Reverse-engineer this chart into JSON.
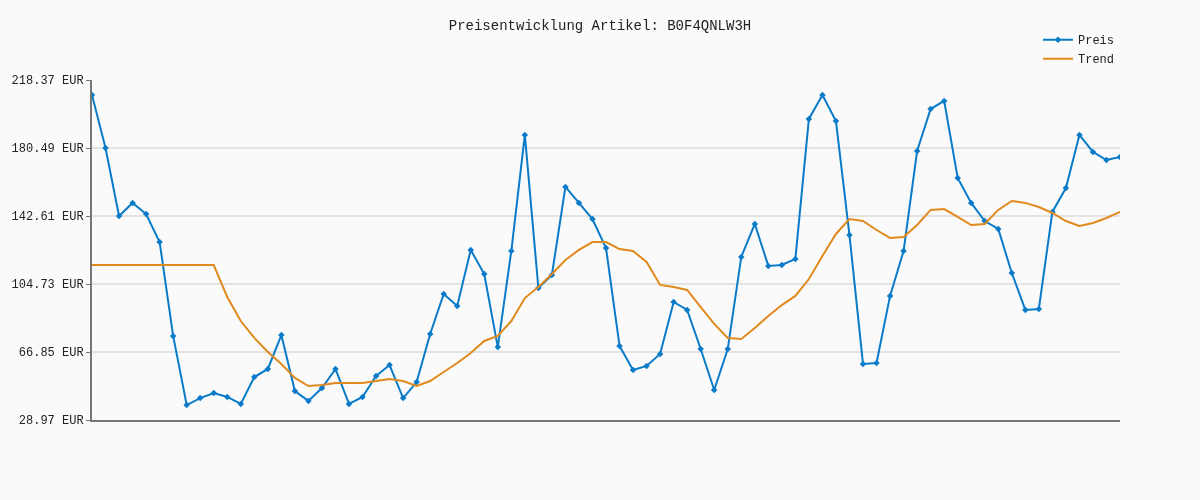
{
  "chart_data": {
    "type": "line",
    "title": "Preisentwicklung Artikel: B0F4QNLW3H",
    "categories": [
      null,
      null,
      null,
      null,
      null,
      null,
      null,
      null,
      null,
      null,
      null,
      null,
      null,
      null,
      null,
      null,
      null,
      null,
      null,
      null,
      null,
      null,
      null,
      null,
      null,
      null,
      null,
      null,
      null,
      null,
      null,
      null,
      null,
      null,
      null,
      null,
      null,
      null,
      null,
      null,
      null,
      null,
      null,
      null,
      null,
      null,
      null,
      null,
      null,
      null,
      null,
      null,
      null,
      null,
      null,
      null,
      null,
      null,
      null,
      null,
      null,
      null,
      null,
      null,
      null,
      null,
      null,
      null,
      null,
      null,
      null,
      null,
      null,
      null,
      null,
      null,
      null
    ],
    "series": [
      {
        "name": "Preis",
        "color": "#0a7bc9",
        "marker": "diamond",
        "values": [
          210.0,
          180.5,
          142.6,
          149.9,
          143.7,
          128.1,
          75.8,
          37.3,
          41.2,
          44.0,
          41.8,
          37.9,
          52.9,
          57.4,
          76.3,
          45.1,
          39.6,
          46.8,
          57.4,
          37.9,
          41.8,
          53.5,
          59.6,
          41.2,
          50.1,
          76.9,
          99.2,
          92.5,
          123.7,
          110.3,
          69.6,
          123.1,
          187.8,
          102.5,
          109.8,
          158.8,
          149.9,
          140.9,
          124.8,
          70.2,
          56.8,
          59.1,
          65.7,
          94.7,
          90.3,
          68.5,
          45.7,
          68.5,
          119.8,
          138.2,
          114.8,
          115.3,
          118.7,
          196.7,
          210.0,
          195.5,
          132.0,
          60.2,
          60.7,
          98.1,
          123.1,
          178.8,
          202.2,
          206.7,
          163.8,
          149.9,
          139.8,
          135.4,
          110.9,
          90.3,
          90.8,
          144.9,
          158.2,
          187.8,
          178.3,
          173.8,
          175.5
        ]
      },
      {
        "name": "Trend",
        "color": "#e08a1e",
        "marker": "none",
        "values": [
          115.3,
          115.3,
          115.3,
          115.3,
          115.3,
          115.3,
          115.3,
          115.3,
          115.3,
          115.3,
          97.5,
          84.1,
          74.7,
          66.9,
          60.2,
          52.4,
          47.9,
          48.5,
          49.6,
          49.6,
          49.6,
          50.7,
          51.8,
          50.7,
          47.9,
          50.7,
          55.7,
          60.7,
          66.3,
          73.0,
          75.8,
          84.1,
          96.9,
          103.1,
          110.3,
          118.1,
          123.7,
          128.1,
          128.1,
          124.2,
          123.1,
          117.0,
          104.2,
          103.1,
          101.4,
          91.9,
          82.5,
          74.7,
          74.1,
          80.2,
          86.9,
          93.0,
          98.1,
          107.5,
          120.3,
          132.6,
          140.9,
          139.8,
          134.8,
          130.4,
          130.9,
          137.6,
          146.0,
          146.5,
          142.1,
          137.6,
          138.2,
          146.0,
          151.0,
          149.9,
          147.6,
          144.3,
          139.8,
          137.1,
          138.7,
          141.5,
          144.9
        ]
      }
    ],
    "ylim": [
      28.97,
      218.37
    ],
    "yticks": [
      {
        "value": 28.97,
        "label": "28.97 EUR"
      },
      {
        "value": 66.85,
        "label": "66.85 EUR"
      },
      {
        "value": 104.73,
        "label": "104.73 EUR"
      },
      {
        "value": 142.61,
        "label": "142.61 EUR"
      },
      {
        "value": 180.49,
        "label": "180.49 EUR"
      },
      {
        "value": 218.37,
        "label": "218.37 EUR"
      }
    ],
    "grid": "y",
    "legend": "top right",
    "tick_labels": "y",
    "line_style": "solid"
  }
}
